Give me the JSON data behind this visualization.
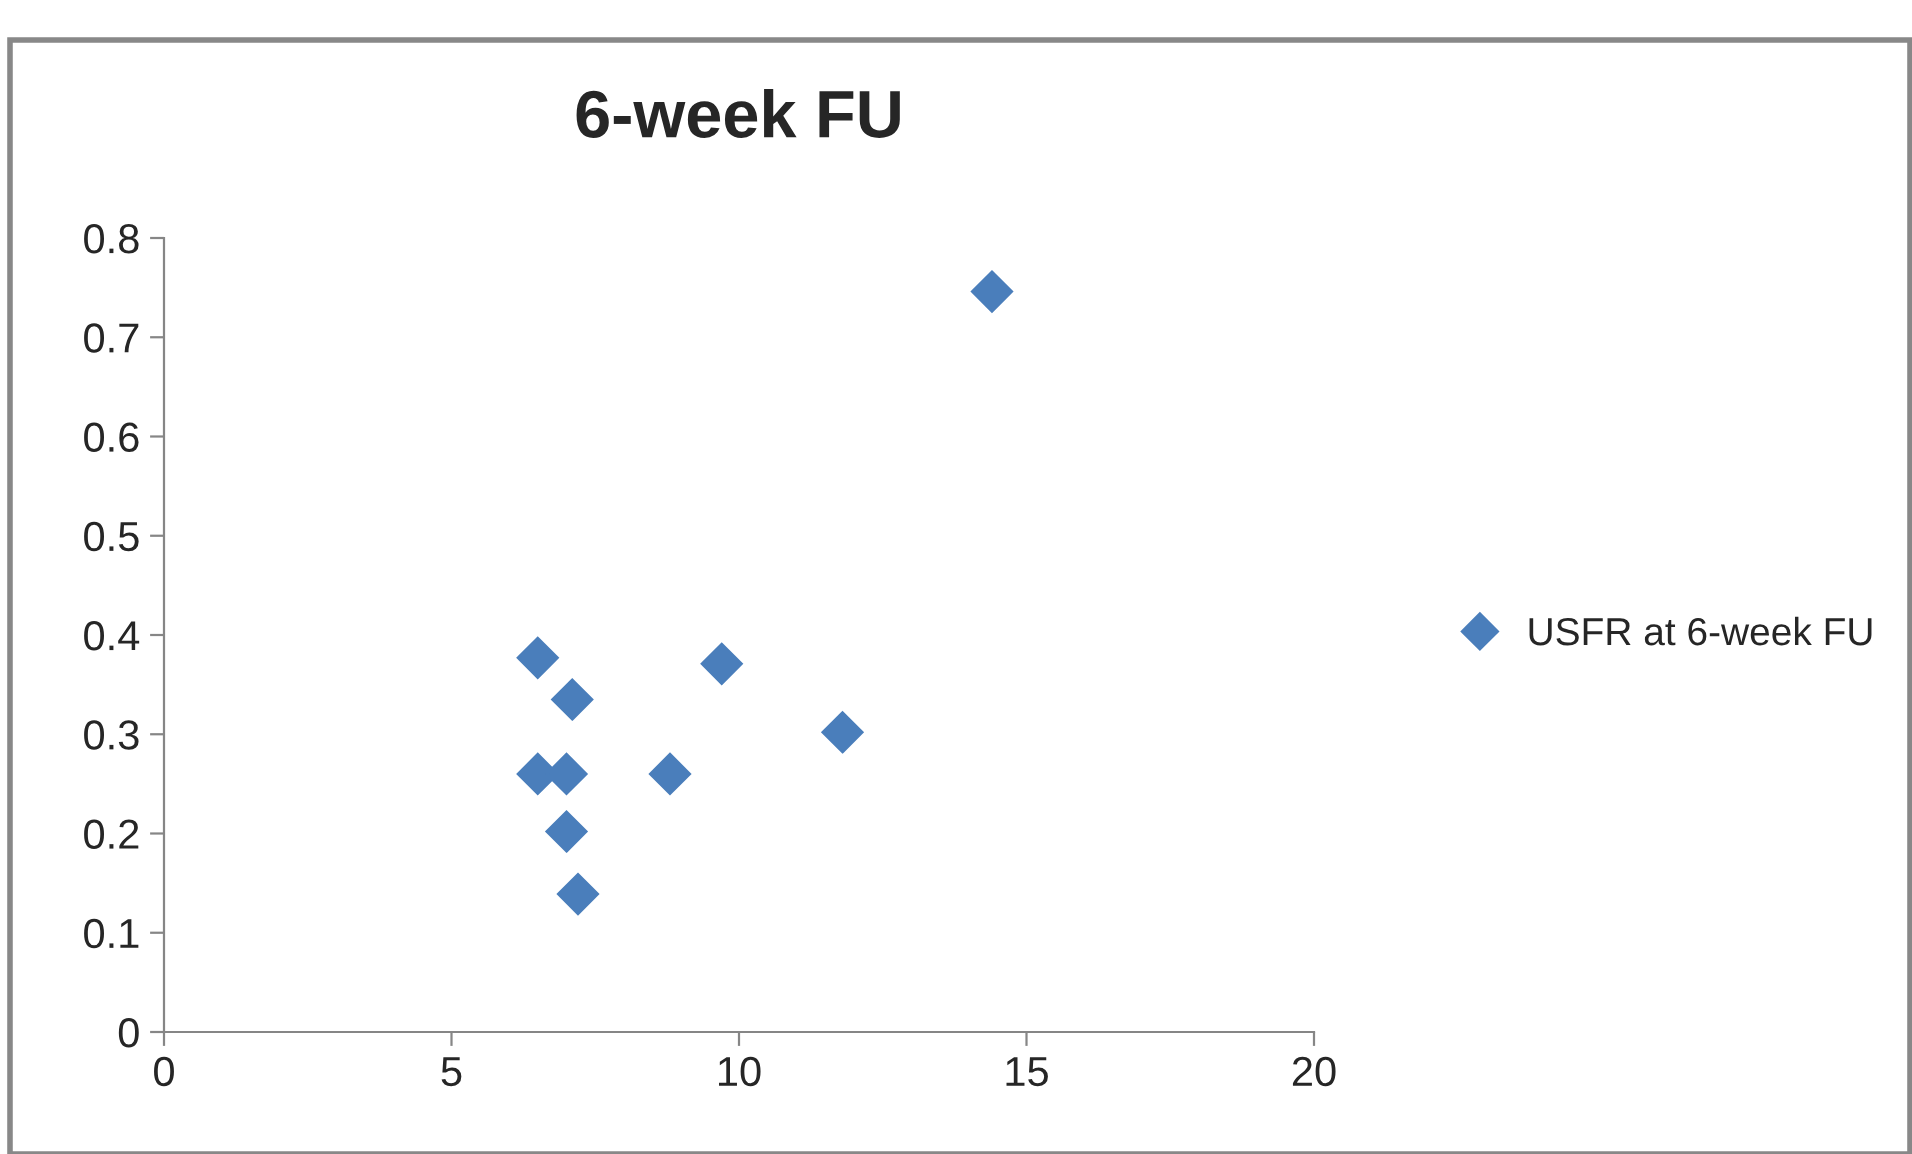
{
  "chart_data": {
    "type": "scatter",
    "title": "6-week FU",
    "x": [
      6.5,
      7.1,
      6.5,
      7.0,
      7.0,
      7.2,
      8.8,
      9.7,
      11.8,
      14.4
    ],
    "series": [
      {
        "name": "USFR at 6-week FU",
        "color": "#4a7ebb",
        "values": [
          0.377,
          0.335,
          0.26,
          0.26,
          0.202,
          0.139,
          0.26,
          0.371,
          0.302,
          0.746
        ]
      }
    ],
    "xlim": [
      0,
      20
    ],
    "xticks": [
      0,
      5,
      10,
      15,
      20
    ],
    "ylim": [
      0,
      0.8
    ],
    "yticks": [
      0,
      0.1,
      0.2,
      0.3,
      0.4,
      0.5,
      0.6,
      0.7,
      0.8
    ],
    "marker": "diamond",
    "grid": false,
    "legend": "right"
  }
}
